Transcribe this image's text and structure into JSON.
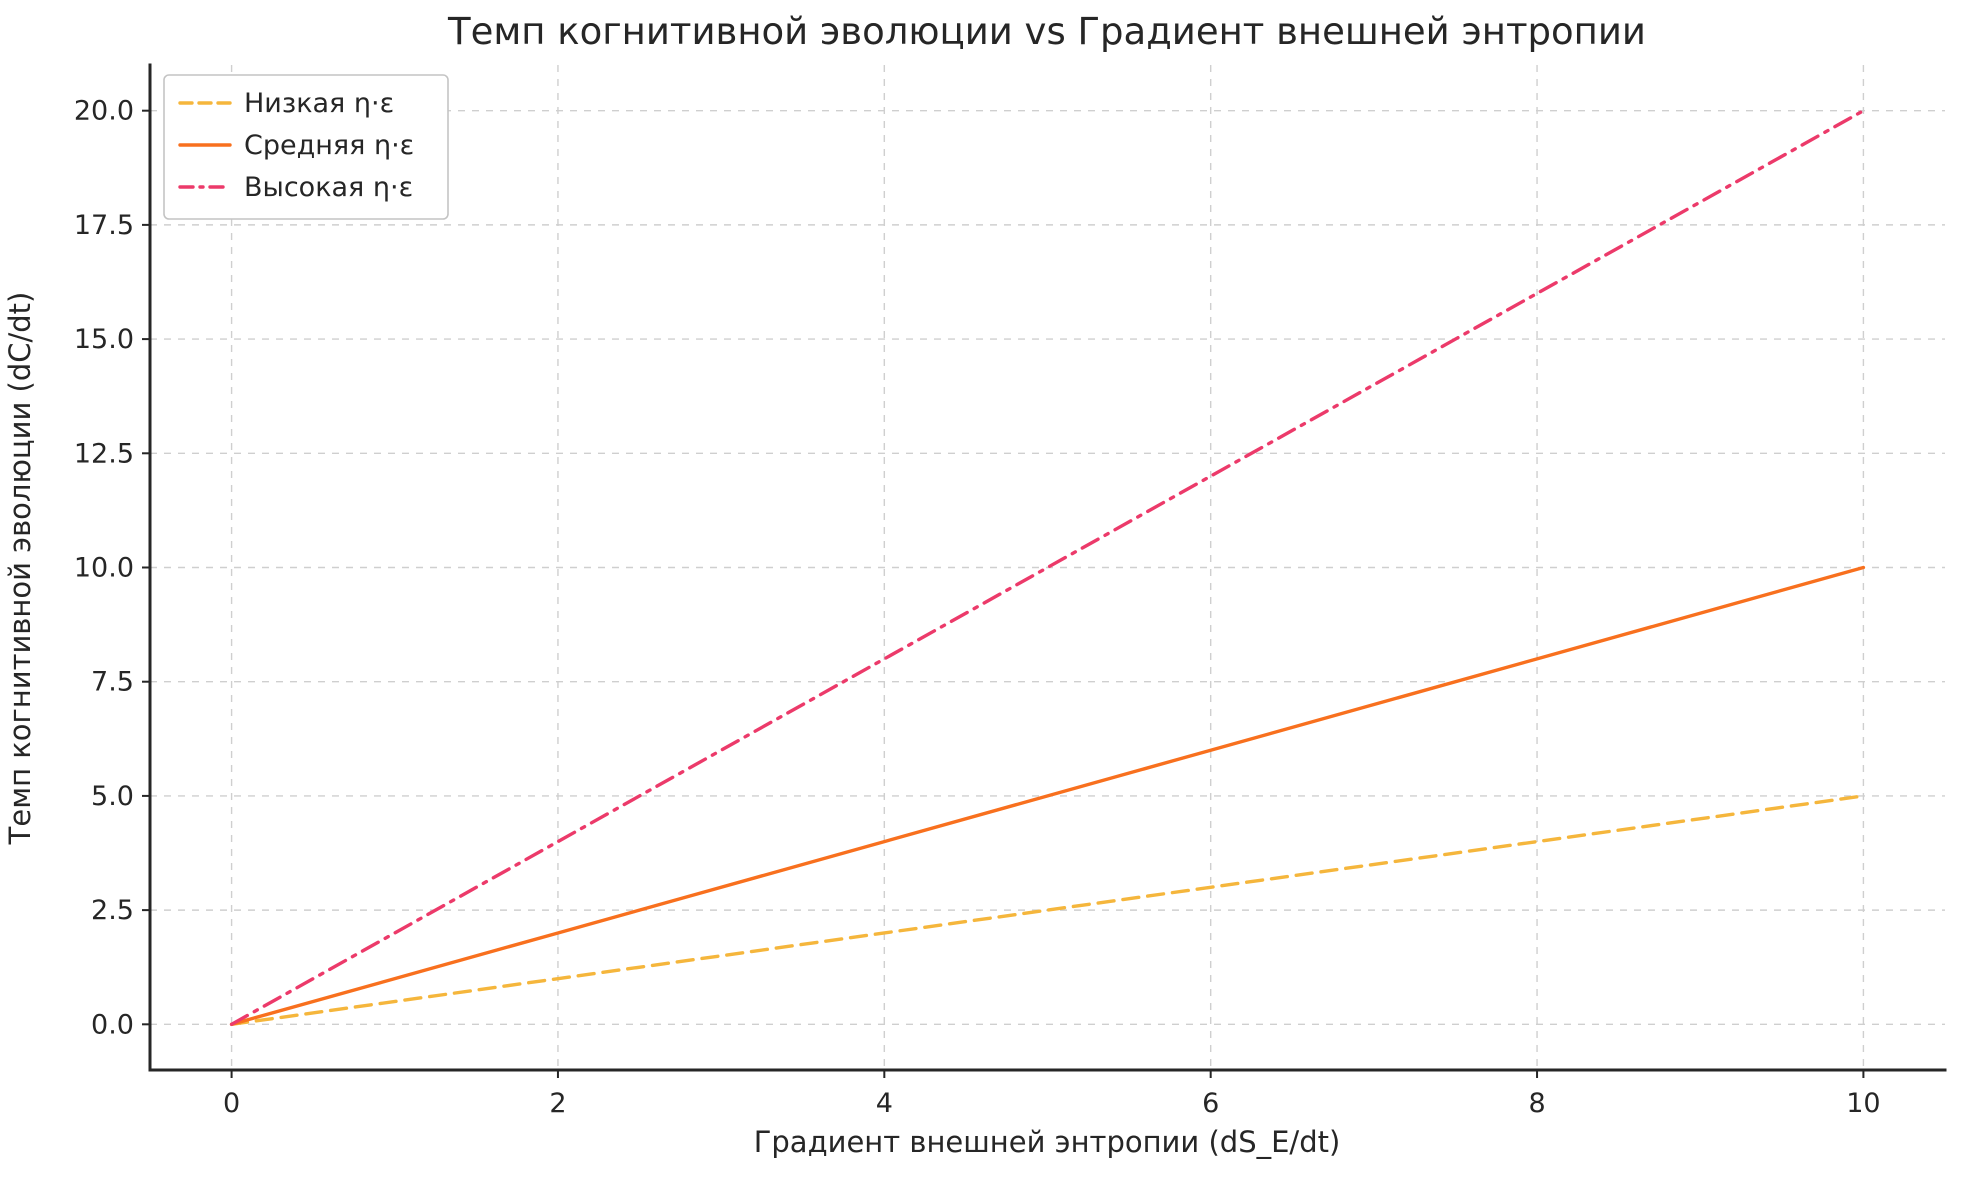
{
  "figure": {
    "background": "#ffffff",
    "text_color": "#262626",
    "grid_color": "#cfcfcf"
  },
  "chart_data": {
    "type": "line",
    "title": "Темп когнитивной эволюции vs Градиент внешней энтропии",
    "xlabel": "Градиент внешней энтропии (dS_E/dt)",
    "ylabel": "Темп когнитивной эволюции (dC/dt)",
    "x": [
      0,
      2,
      4,
      6,
      8,
      10
    ],
    "series": [
      {
        "name": "Низкая η·ε",
        "slope": 0.5,
        "values": [
          0,
          1,
          2,
          3,
          4,
          5
        ],
        "color": "#f5b63c",
        "linestyle": "dashed"
      },
      {
        "name": "Средняя η·ε",
        "slope": 1.0,
        "values": [
          0,
          2,
          4,
          6,
          8,
          10
        ],
        "color": "#f8701e",
        "linestyle": "solid"
      },
      {
        "name": "Высокая η·ε",
        "slope": 2.0,
        "values": [
          0,
          4,
          8,
          12,
          16,
          20
        ],
        "color": "#ec3a6a",
        "linestyle": "dashdot"
      }
    ],
    "xlim": [
      -0.5,
      10.5
    ],
    "ylim": [
      -1,
      21
    ],
    "xticks": [
      0,
      2,
      4,
      6,
      8,
      10
    ],
    "xtick_labels": [
      "0",
      "2",
      "4",
      "6",
      "8",
      "10"
    ],
    "yticks": [
      0,
      2.5,
      5,
      7.5,
      10,
      12.5,
      15,
      17.5,
      20
    ],
    "ytick_labels": [
      "0.0",
      "2.5",
      "5.0",
      "7.5",
      "10.0",
      "12.5",
      "15.0",
      "17.5",
      "20.0"
    ],
    "grid": true,
    "legend": {
      "position": "upper left",
      "entries": [
        "Низкая η·ε",
        "Средняя η·ε",
        "Высокая η·ε"
      ]
    }
  }
}
